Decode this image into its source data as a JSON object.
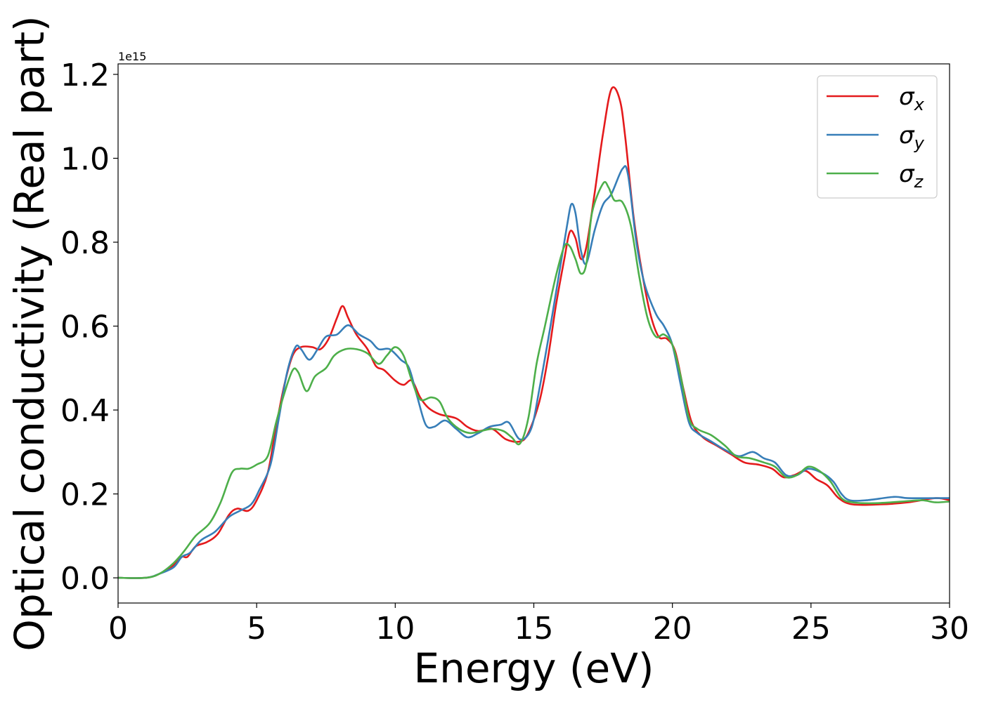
{
  "chart_data": {
    "type": "line",
    "xlabel": "Energy (eV)",
    "ylabel": "Optical conductivity (Real part)",
    "y_offset_text": "1e15",
    "y_scale_factor": 1000000000000000.0,
    "xlim": [
      0,
      30
    ],
    "ylim": [
      -0.06,
      1.225
    ],
    "x_ticks": [
      0,
      5,
      10,
      15,
      20,
      25,
      30
    ],
    "x_tick_labels": [
      "0",
      "5",
      "10",
      "15",
      "20",
      "25",
      "30"
    ],
    "y_ticks": [
      0.0,
      0.2,
      0.4,
      0.6,
      0.8,
      1.0,
      1.2
    ],
    "y_tick_labels": [
      "0.0",
      "0.2",
      "0.4",
      "0.6",
      "0.8",
      "1.0",
      "1.2"
    ],
    "grid": false,
    "legend_position": "top-right",
    "series": [
      {
        "name": "σx",
        "legend_symbol": "σ",
        "legend_subscript": "x",
        "color": "#e41a1c",
        "points": [
          [
            0,
            0
          ],
          [
            1,
            0
          ],
          [
            1.5,
            0.01
          ],
          [
            2,
            0.03
          ],
          [
            2.3,
            0.05
          ],
          [
            2.5,
            0.05
          ],
          [
            2.8,
            0.075
          ],
          [
            3.2,
            0.085
          ],
          [
            3.6,
            0.105
          ],
          [
            4,
            0.15
          ],
          [
            4.3,
            0.165
          ],
          [
            4.7,
            0.16
          ],
          [
            5,
            0.185
          ],
          [
            5.4,
            0.25
          ],
          [
            5.7,
            0.36
          ],
          [
            6,
            0.46
          ],
          [
            6.3,
            0.53
          ],
          [
            6.6,
            0.55
          ],
          [
            7,
            0.55
          ],
          [
            7.3,
            0.545
          ],
          [
            7.6,
            0.57
          ],
          [
            7.9,
            0.62
          ],
          [
            8.1,
            0.648
          ],
          [
            8.3,
            0.62
          ],
          [
            8.6,
            0.58
          ],
          [
            9,
            0.545
          ],
          [
            9.3,
            0.505
          ],
          [
            9.6,
            0.495
          ],
          [
            10,
            0.47
          ],
          [
            10.3,
            0.46
          ],
          [
            10.6,
            0.47
          ],
          [
            10.9,
            0.43
          ],
          [
            11.2,
            0.405
          ],
          [
            11.6,
            0.39
          ],
          [
            12.2,
            0.38
          ],
          [
            12.6,
            0.36
          ],
          [
            13,
            0.35
          ],
          [
            13.5,
            0.355
          ],
          [
            14,
            0.33
          ],
          [
            14.5,
            0.325
          ],
          [
            14.8,
            0.345
          ],
          [
            15.2,
            0.42
          ],
          [
            15.5,
            0.52
          ],
          [
            15.8,
            0.65
          ],
          [
            16.1,
            0.76
          ],
          [
            16.3,
            0.825
          ],
          [
            16.5,
            0.81
          ],
          [
            16.7,
            0.76
          ],
          [
            16.9,
            0.79
          ],
          [
            17.2,
            0.92
          ],
          [
            17.5,
            1.06
          ],
          [
            17.8,
            1.165
          ],
          [
            18.1,
            1.14
          ],
          [
            18.3,
            1.05
          ],
          [
            18.6,
            0.86
          ],
          [
            18.9,
            0.73
          ],
          [
            19.2,
            0.63
          ],
          [
            19.5,
            0.575
          ],
          [
            19.8,
            0.57
          ],
          [
            20.1,
            0.54
          ],
          [
            20.4,
            0.45
          ],
          [
            20.7,
            0.37
          ],
          [
            21.1,
            0.335
          ],
          [
            21.6,
            0.315
          ],
          [
            22.1,
            0.295
          ],
          [
            22.6,
            0.275
          ],
          [
            23.1,
            0.27
          ],
          [
            23.6,
            0.26
          ],
          [
            24,
            0.24
          ],
          [
            24.4,
            0.245
          ],
          [
            24.8,
            0.255
          ],
          [
            25.2,
            0.235
          ],
          [
            25.6,
            0.22
          ],
          [
            26,
            0.19
          ],
          [
            26.5,
            0.175
          ],
          [
            27.5,
            0.175
          ],
          [
            28.5,
            0.18
          ],
          [
            29.5,
            0.19
          ],
          [
            30,
            0.185
          ]
        ]
      },
      {
        "name": "σy",
        "legend_symbol": "σ",
        "legend_subscript": "y",
        "color": "#377eb8",
        "points": [
          [
            0,
            0
          ],
          [
            1,
            0
          ],
          [
            1.5,
            0.01
          ],
          [
            2,
            0.025
          ],
          [
            2.3,
            0.05
          ],
          [
            2.6,
            0.06
          ],
          [
            3,
            0.09
          ],
          [
            3.5,
            0.11
          ],
          [
            4,
            0.145
          ],
          [
            4.4,
            0.16
          ],
          [
            4.8,
            0.175
          ],
          [
            5.1,
            0.21
          ],
          [
            5.5,
            0.27
          ],
          [
            5.8,
            0.38
          ],
          [
            6.1,
            0.49
          ],
          [
            6.4,
            0.55
          ],
          [
            6.6,
            0.545
          ],
          [
            6.9,
            0.52
          ],
          [
            7.2,
            0.545
          ],
          [
            7.5,
            0.575
          ],
          [
            7.9,
            0.58
          ],
          [
            8.3,
            0.602
          ],
          [
            8.7,
            0.58
          ],
          [
            9.1,
            0.565
          ],
          [
            9.4,
            0.545
          ],
          [
            9.8,
            0.545
          ],
          [
            10.2,
            0.52
          ],
          [
            10.5,
            0.5
          ],
          [
            10.8,
            0.43
          ],
          [
            11.1,
            0.365
          ],
          [
            11.4,
            0.36
          ],
          [
            11.8,
            0.375
          ],
          [
            12.2,
            0.355
          ],
          [
            12.6,
            0.335
          ],
          [
            13,
            0.345
          ],
          [
            13.4,
            0.36
          ],
          [
            13.8,
            0.365
          ],
          [
            14.1,
            0.37
          ],
          [
            14.5,
            0.33
          ],
          [
            14.9,
            0.355
          ],
          [
            15.2,
            0.45
          ],
          [
            15.6,
            0.6
          ],
          [
            15.9,
            0.72
          ],
          [
            16.2,
            0.84
          ],
          [
            16.35,
            0.89
          ],
          [
            16.5,
            0.87
          ],
          [
            16.7,
            0.78
          ],
          [
            16.9,
            0.75
          ],
          [
            17.2,
            0.83
          ],
          [
            17.5,
            0.89
          ],
          [
            17.8,
            0.915
          ],
          [
            18.2,
            0.975
          ],
          [
            18.4,
            0.96
          ],
          [
            18.7,
            0.8
          ],
          [
            19,
            0.7
          ],
          [
            19.4,
            0.63
          ],
          [
            19.7,
            0.6
          ],
          [
            20,
            0.555
          ],
          [
            20.3,
            0.46
          ],
          [
            20.6,
            0.37
          ],
          [
            20.9,
            0.345
          ],
          [
            21.4,
            0.325
          ],
          [
            21.9,
            0.305
          ],
          [
            22.4,
            0.29
          ],
          [
            22.9,
            0.3
          ],
          [
            23.3,
            0.285
          ],
          [
            23.7,
            0.275
          ],
          [
            24.1,
            0.245
          ],
          [
            24.5,
            0.245
          ],
          [
            24.9,
            0.26
          ],
          [
            25.4,
            0.25
          ],
          [
            25.8,
            0.23
          ],
          [
            26.1,
            0.2
          ],
          [
            26.4,
            0.185
          ],
          [
            27,
            0.185
          ],
          [
            28,
            0.193
          ],
          [
            28.5,
            0.19
          ],
          [
            29.5,
            0.19
          ],
          [
            30,
            0.19
          ]
        ]
      },
      {
        "name": "σz",
        "legend_symbol": "σ",
        "legend_subscript": "z",
        "color": "#4daf4a",
        "points": [
          [
            0,
            0
          ],
          [
            1,
            0
          ],
          [
            1.5,
            0.01
          ],
          [
            2,
            0.035
          ],
          [
            2.4,
            0.065
          ],
          [
            2.8,
            0.1
          ],
          [
            3.3,
            0.13
          ],
          [
            3.7,
            0.18
          ],
          [
            4.1,
            0.25
          ],
          [
            4.4,
            0.26
          ],
          [
            4.7,
            0.26
          ],
          [
            5,
            0.27
          ],
          [
            5.4,
            0.29
          ],
          [
            5.7,
            0.37
          ],
          [
            6,
            0.44
          ],
          [
            6.3,
            0.495
          ],
          [
            6.5,
            0.49
          ],
          [
            6.8,
            0.445
          ],
          [
            7.1,
            0.48
          ],
          [
            7.5,
            0.5
          ],
          [
            7.8,
            0.53
          ],
          [
            8.2,
            0.545
          ],
          [
            8.6,
            0.545
          ],
          [
            9,
            0.535
          ],
          [
            9.4,
            0.51
          ],
          [
            9.7,
            0.53
          ],
          [
            10,
            0.55
          ],
          [
            10.3,
            0.53
          ],
          [
            10.6,
            0.47
          ],
          [
            10.9,
            0.425
          ],
          [
            11.3,
            0.43
          ],
          [
            11.6,
            0.42
          ],
          [
            11.9,
            0.38
          ],
          [
            12.3,
            0.355
          ],
          [
            12.7,
            0.345
          ],
          [
            13.1,
            0.35
          ],
          [
            13.5,
            0.355
          ],
          [
            13.9,
            0.35
          ],
          [
            14.2,
            0.335
          ],
          [
            14.5,
            0.32
          ],
          [
            14.8,
            0.38
          ],
          [
            15.1,
            0.51
          ],
          [
            15.4,
            0.6
          ],
          [
            15.8,
            0.72
          ],
          [
            16.1,
            0.79
          ],
          [
            16.3,
            0.79
          ],
          [
            16.5,
            0.76
          ],
          [
            16.7,
            0.725
          ],
          [
            16.9,
            0.75
          ],
          [
            17.1,
            0.87
          ],
          [
            17.5,
            0.94
          ],
          [
            17.7,
            0.93
          ],
          [
            17.9,
            0.9
          ],
          [
            18.2,
            0.895
          ],
          [
            18.5,
            0.84
          ],
          [
            18.8,
            0.72
          ],
          [
            19.1,
            0.62
          ],
          [
            19.4,
            0.575
          ],
          [
            19.7,
            0.58
          ],
          [
            20,
            0.555
          ],
          [
            20.3,
            0.48
          ],
          [
            20.6,
            0.38
          ],
          [
            20.9,
            0.355
          ],
          [
            21.4,
            0.34
          ],
          [
            21.9,
            0.315
          ],
          [
            22.3,
            0.29
          ],
          [
            22.8,
            0.285
          ],
          [
            23.3,
            0.275
          ],
          [
            23.7,
            0.265
          ],
          [
            24.1,
            0.24
          ],
          [
            24.5,
            0.245
          ],
          [
            24.9,
            0.265
          ],
          [
            25.3,
            0.255
          ],
          [
            25.7,
            0.23
          ],
          [
            26.1,
            0.19
          ],
          [
            26.5,
            0.18
          ],
          [
            27.3,
            0.178
          ],
          [
            28.3,
            0.182
          ],
          [
            29,
            0.185
          ],
          [
            29.5,
            0.18
          ],
          [
            30,
            0.182
          ]
        ]
      }
    ]
  }
}
